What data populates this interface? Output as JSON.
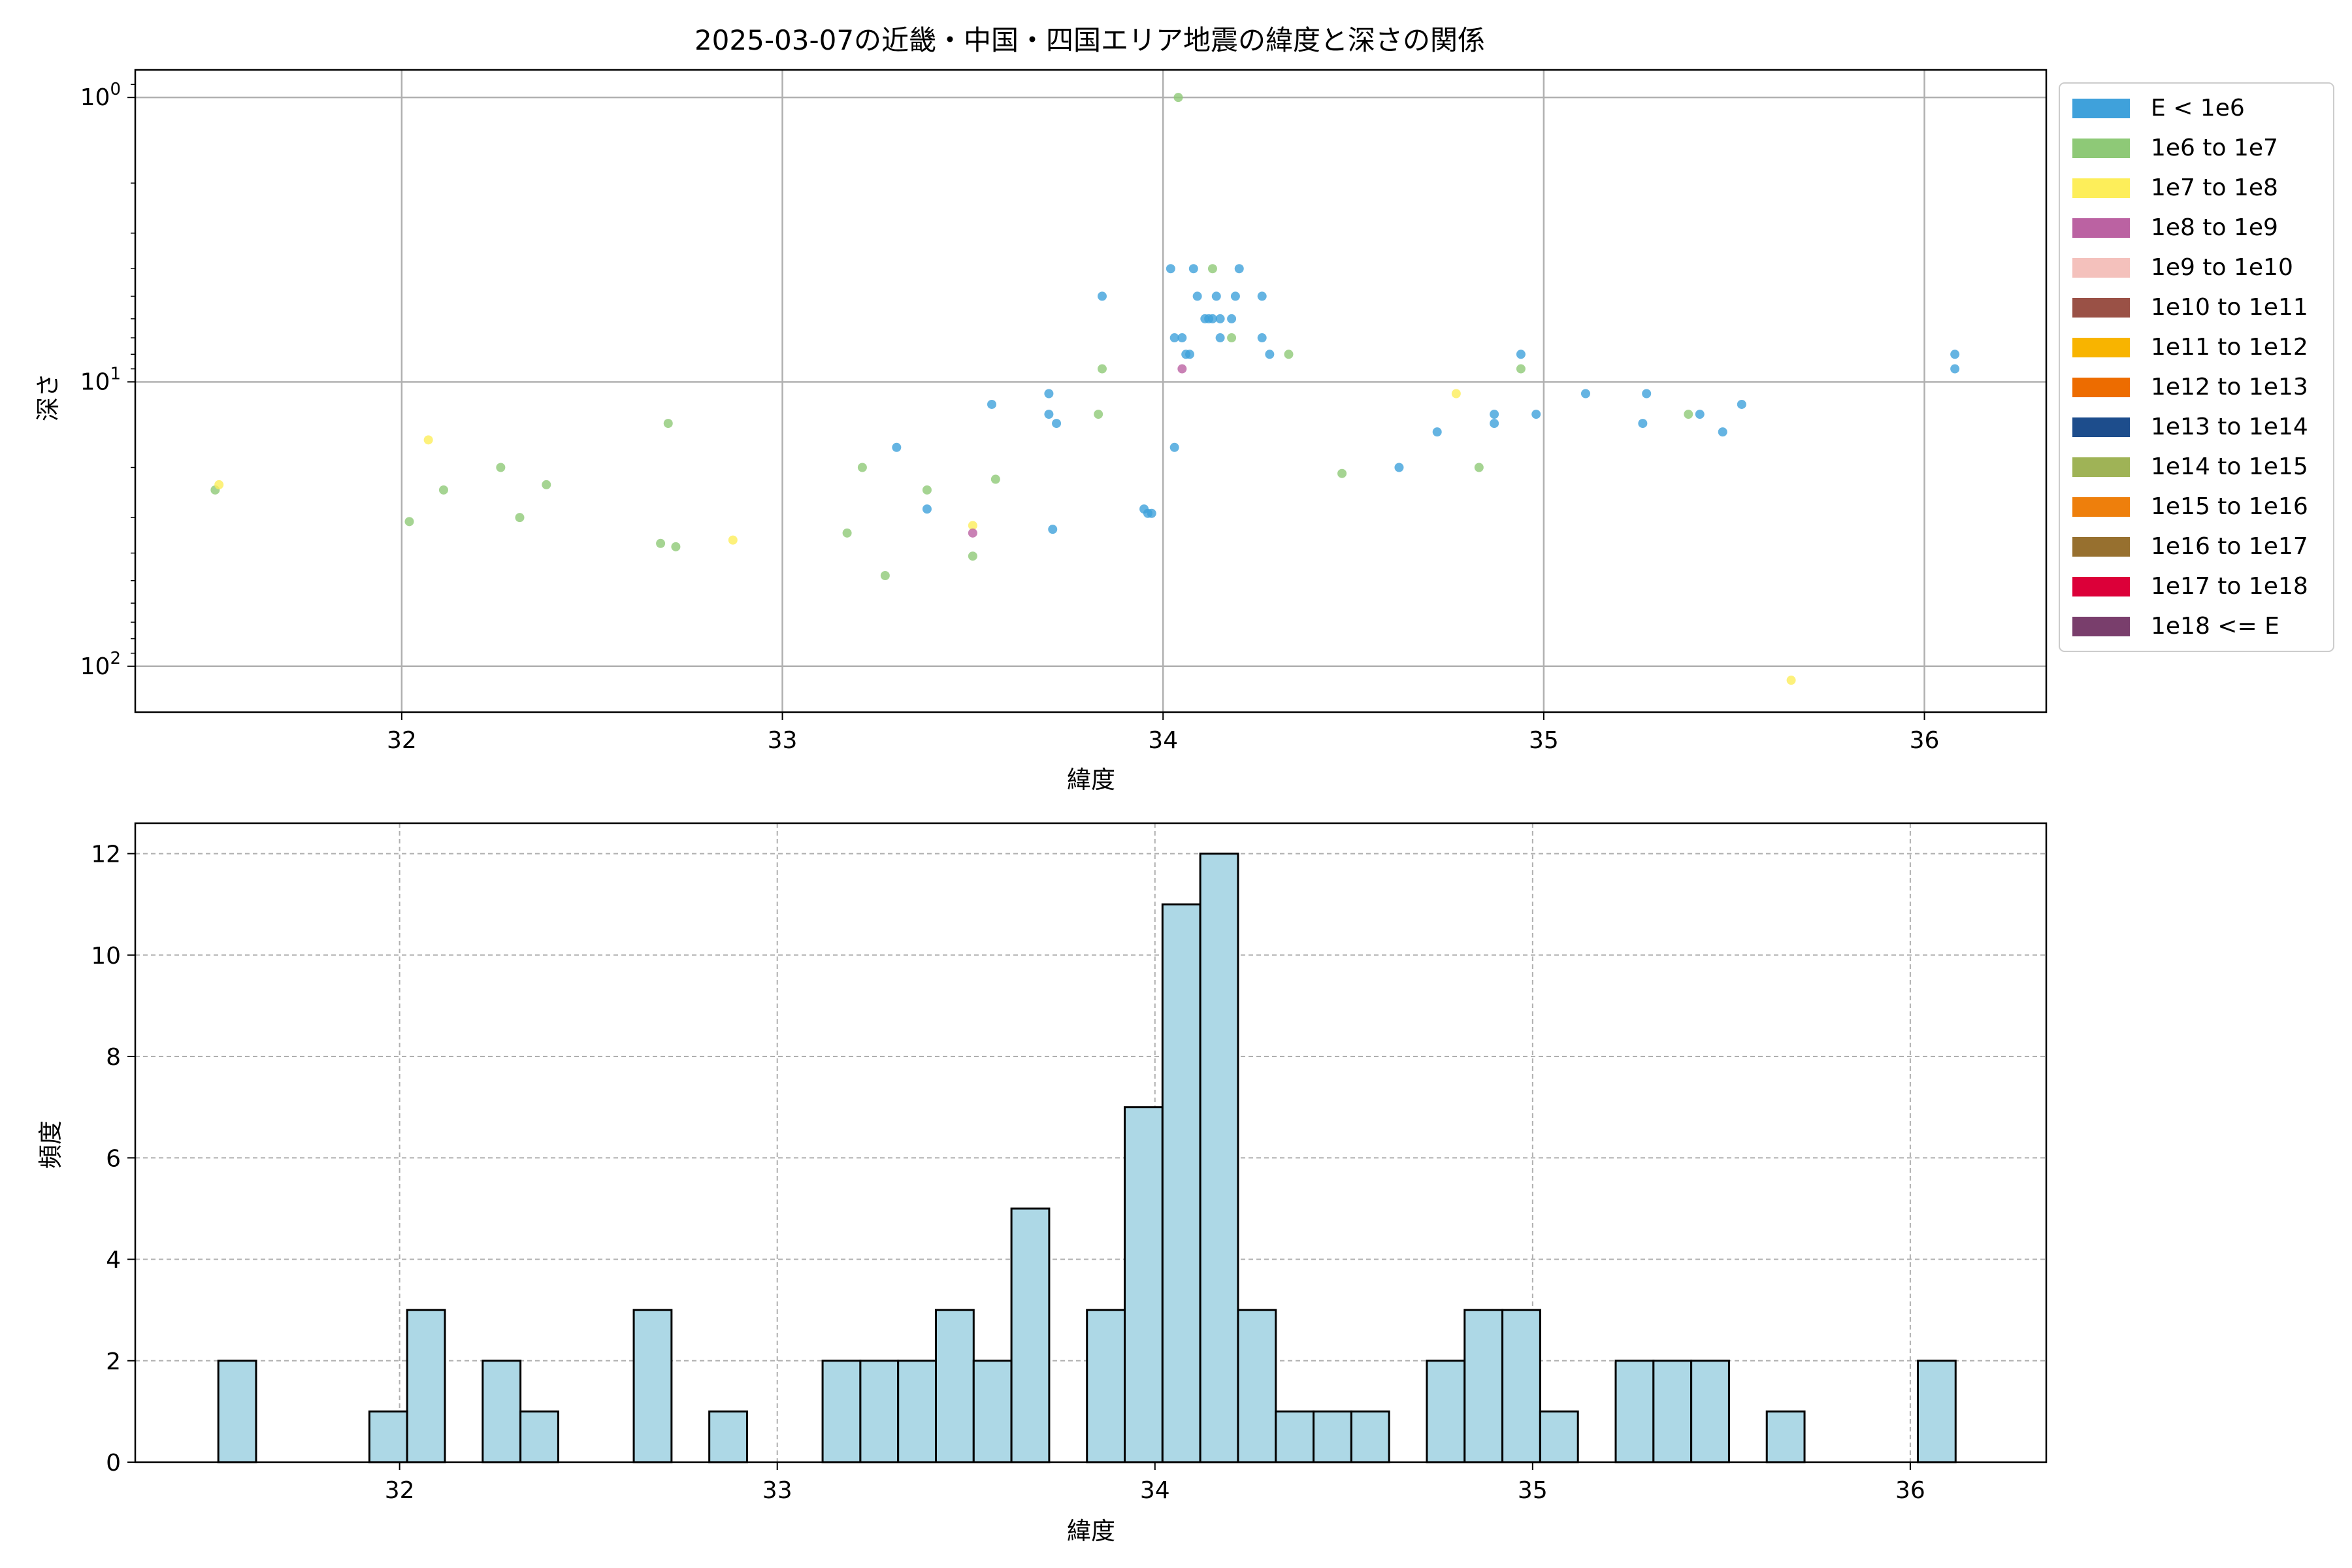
{
  "chart_data": [
    {
      "type": "scatter",
      "title": "2025-03-07の近畿・中国・四国エリア地震の緯度と深さの関係",
      "xlabel": "緯度",
      "ylabel": "深さ",
      "xlim": [
        31.3,
        36.32
      ],
      "ylim": [
        145,
        0.8
      ],
      "yscale": "log",
      "yaxis_inverted": true,
      "xticks": [
        32,
        33,
        34,
        35,
        36
      ],
      "xtick_labels": [
        "32",
        "33",
        "34",
        "35",
        "36"
      ],
      "yticks": [
        1,
        10,
        100
      ],
      "ytick_labels": [
        "10",
        "10",
        "10"
      ],
      "ytick_exponents": [
        "0",
        "1",
        "2"
      ],
      "grid": true,
      "legend_position": "outside-right",
      "legend": [
        {
          "label": "E < 1e6",
          "color": "#3fa1db"
        },
        {
          "label": "1e6 to 1e7",
          "color": "#8ec977"
        },
        {
          "label": "1e7 to 1e8",
          "color": "#fdee5a"
        },
        {
          "label": "1e8 to 1e9",
          "color": "#bb62a2"
        },
        {
          "label": "1e9 to 1e10",
          "color": "#f4c1bc"
        },
        {
          "label": "1e10 to 1e11",
          "color": "#9a5146"
        },
        {
          "label": "1e11 to 1e12",
          "color": "#f8b400"
        },
        {
          "label": "1e12 to 1e13",
          "color": "#ed6c00"
        },
        {
          "label": "1e13 to 1e14",
          "color": "#1d4d8c"
        },
        {
          "label": "1e14 to 1e15",
          "color": "#9fb356"
        },
        {
          "label": "1e15 to 1e16",
          "color": "#ee7f0c"
        },
        {
          "label": "1e16 to 1e17",
          "color": "#97702f"
        },
        {
          "label": "1e17 to 1e18",
          "color": "#dc0039"
        },
        {
          "label": "1e18 <= E",
          "color": "#793e6c"
        }
      ],
      "series": [
        {
          "color": "#3fa1db",
          "points": [
            [
              33.3,
              17
            ],
            [
              33.38,
              28
            ],
            [
              33.55,
              12
            ],
            [
              33.7,
              11
            ],
            [
              33.7,
              13
            ],
            [
              33.72,
              14
            ],
            [
              33.71,
              33
            ],
            [
              33.84,
              5
            ],
            [
              33.95,
              28
            ],
            [
              33.96,
              29
            ],
            [
              33.97,
              29
            ],
            [
              34.02,
              4
            ],
            [
              34.03,
              7
            ],
            [
              34.03,
              17
            ],
            [
              34.05,
              7
            ],
            [
              34.06,
              8
            ],
            [
              34.07,
              8
            ],
            [
              34.08,
              4
            ],
            [
              34.09,
              5
            ],
            [
              34.11,
              6
            ],
            [
              34.12,
              6
            ],
            [
              34.13,
              6
            ],
            [
              34.14,
              5
            ],
            [
              34.15,
              6
            ],
            [
              34.15,
              7
            ],
            [
              34.18,
              6
            ],
            [
              34.19,
              5
            ],
            [
              34.2,
              4
            ],
            [
              34.26,
              5
            ],
            [
              34.26,
              7
            ],
            [
              34.28,
              8
            ],
            [
              34.62,
              20
            ],
            [
              34.72,
              15
            ],
            [
              34.87,
              13
            ],
            [
              34.87,
              14
            ],
            [
              34.94,
              8
            ],
            [
              34.98,
              13
            ],
            [
              35.11,
              11
            ],
            [
              35.26,
              14
            ],
            [
              35.27,
              11
            ],
            [
              35.41,
              13
            ],
            [
              35.47,
              15
            ],
            [
              35.52,
              12
            ],
            [
              36.08,
              8
            ],
            [
              36.08,
              9
            ]
          ]
        },
        {
          "color": "#8ec977",
          "points": [
            [
              31.51,
              24
            ],
            [
              32.02,
              31
            ],
            [
              32.11,
              24
            ],
            [
              32.26,
              20
            ],
            [
              32.31,
              30
            ],
            [
              32.38,
              23
            ],
            [
              32.68,
              37
            ],
            [
              32.7,
              14
            ],
            [
              32.72,
              38
            ],
            [
              33.17,
              34
            ],
            [
              33.21,
              20
            ],
            [
              33.27,
              48
            ],
            [
              33.38,
              24
            ],
            [
              33.5,
              41
            ],
            [
              33.56,
              22
            ],
            [
              33.83,
              13
            ],
            [
              33.84,
              9
            ],
            [
              34.04,
              1
            ],
            [
              34.13,
              4
            ],
            [
              34.18,
              7
            ],
            [
              34.33,
              8
            ],
            [
              34.47,
              21
            ],
            [
              34.83,
              20
            ],
            [
              34.94,
              9
            ],
            [
              35.38,
              13
            ]
          ]
        },
        {
          "color": "#fdee5a",
          "points": [
            [
              31.52,
              23
            ],
            [
              32.07,
              16
            ],
            [
              32.87,
              36
            ],
            [
              33.5,
              32
            ],
            [
              34.77,
              11
            ],
            [
              35.65,
              112
            ]
          ]
        },
        {
          "color": "#bb62a2",
          "points": [
            [
              33.5,
              34
            ],
            [
              34.05,
              9
            ]
          ]
        }
      ]
    },
    {
      "type": "bar",
      "title": "",
      "xlabel": "緯度",
      "ylabel": "頻度",
      "xlim": [
        31.3,
        36.36
      ],
      "ylim": [
        0,
        12.6
      ],
      "bin_start": 31.52,
      "bin_width": 0.1,
      "values": [
        2,
        0,
        0,
        0,
        1,
        3,
        0,
        2,
        1,
        0,
        0,
        3,
        0,
        1,
        0,
        0,
        2,
        2,
        2,
        3,
        2,
        5,
        0,
        3,
        7,
        11,
        12,
        3,
        1,
        1,
        1,
        0,
        2,
        3,
        3,
        1,
        0,
        2,
        2,
        2,
        0,
        1,
        0,
        0,
        0,
        2
      ],
      "xticks": [
        32,
        33,
        34,
        35,
        36
      ],
      "xtick_labels": [
        "32",
        "33",
        "34",
        "35",
        "36"
      ],
      "yticks": [
        0,
        2,
        4,
        6,
        8,
        10,
        12
      ],
      "ytick_labels": [
        "0",
        "2",
        "4",
        "6",
        "8",
        "10",
        "12"
      ],
      "bar_color": "#add8e6",
      "edge_color": "#000000",
      "grid": true
    }
  ]
}
